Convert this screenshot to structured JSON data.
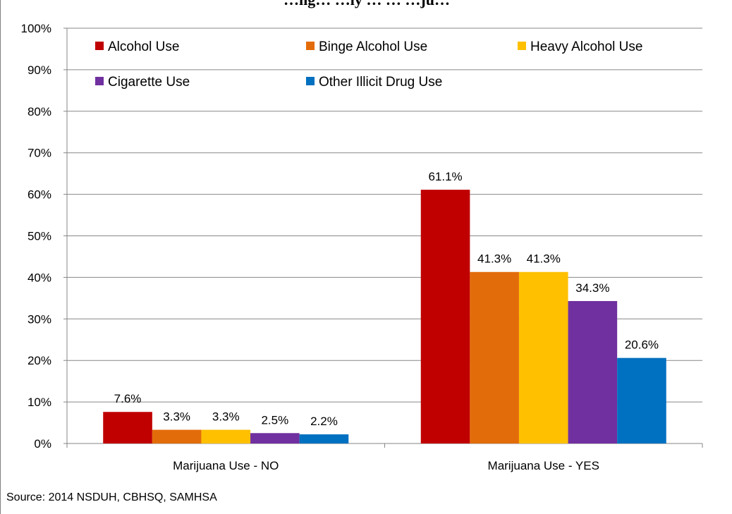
{
  "chart_data": {
    "type": "bar",
    "title": "…ng… …ly … … …ju…",
    "categories": [
      "Marijuana Use - NO",
      "Marijuana Use - YES"
    ],
    "series": [
      {
        "name": "Alcohol Use",
        "color": "#c00000",
        "values": [
          7.6,
          61.1
        ],
        "labels": [
          "7.6%",
          "61.1%"
        ]
      },
      {
        "name": "Binge Alcohol Use",
        "color": "#e36c0a",
        "values": [
          3.3,
          41.3
        ],
        "labels": [
          "3.3%",
          "41.3%"
        ]
      },
      {
        "name": "Heavy Alcohol Use",
        "color": "#ffc000",
        "values": [
          3.3,
          41.3
        ],
        "labels": [
          "3.3%",
          "41.3%"
        ]
      },
      {
        "name": "Cigarette Use",
        "color": "#7030a0",
        "values": [
          2.5,
          34.3
        ],
        "labels": [
          "2.5%",
          "34.3%"
        ]
      },
      {
        "name": "Other Illicit Drug Use",
        "color": "#0070c0",
        "values": [
          2.2,
          20.6
        ],
        "labels": [
          "2.2%",
          "20.6%"
        ]
      }
    ],
    "yticks": [
      "0%",
      "10%",
      "20%",
      "30%",
      "40%",
      "50%",
      "60%",
      "70%",
      "80%",
      "90%",
      "100%"
    ],
    "ylim": [
      0,
      100
    ],
    "grid": true,
    "legend_position": "top",
    "source": "Source: 2014 NSDUH, CBHSQ, SAMHSA"
  }
}
